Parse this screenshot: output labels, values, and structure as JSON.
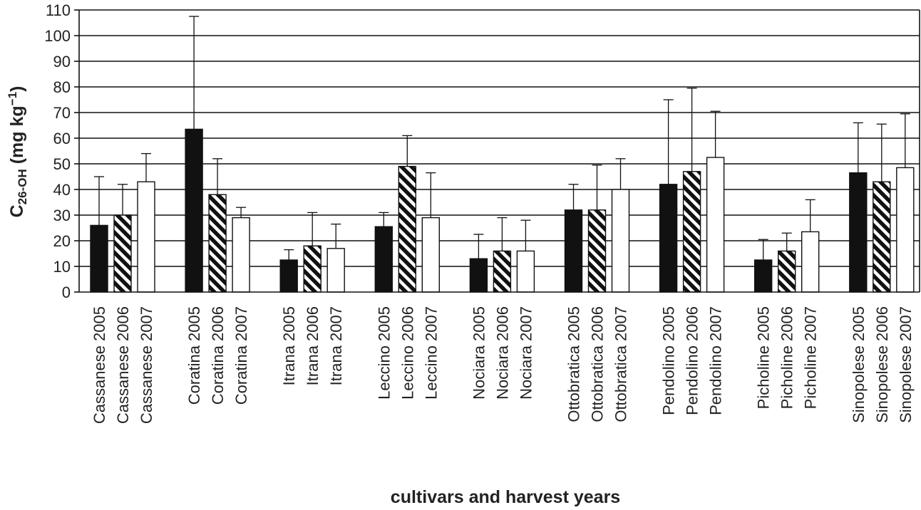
{
  "chart_data": {
    "type": "bar",
    "ylabel_main": "C",
    "ylabel_sub": "26-OH",
    "ylabel_unit_pre": " (mg kg",
    "ylabel_unit_sup": "−1",
    "ylabel_unit_post": ")",
    "xlabel": "cultivars and harvest years",
    "ylim": [
      0,
      110
    ],
    "yticks": [
      "0",
      "10",
      "20",
      "30",
      "40",
      "50",
      "60",
      "70",
      "80",
      "90",
      "100",
      "110"
    ],
    "grid": true,
    "groups": [
      {
        "cultivar": "Cassanese",
        "bars": [
          {
            "label": "Cassanese 2005",
            "year": "2005",
            "value": 26,
            "error": 19
          },
          {
            "label": "Cassanese 2006",
            "year": "2006",
            "value": 30,
            "error": 12
          },
          {
            "label": "Cassanese 2007",
            "year": "2007",
            "value": 43,
            "error": 11
          }
        ]
      },
      {
        "cultivar": "Coratina",
        "bars": [
          {
            "label": "Coratina 2005",
            "year": "2005",
            "value": 63.5,
            "error": 44
          },
          {
            "label": "Coratina 2006",
            "year": "2006",
            "value": 38,
            "error": 14
          },
          {
            "label": "Coratina 2007",
            "year": "2007",
            "value": 29,
            "error": 4
          }
        ]
      },
      {
        "cultivar": "Itrana",
        "bars": [
          {
            "label": "Itrana 2005",
            "year": "2005",
            "value": 12.5,
            "error": 4
          },
          {
            "label": "Itrana 2006",
            "year": "2006",
            "value": 18,
            "error": 13
          },
          {
            "label": "Itrana 2007",
            "year": "2007",
            "value": 17,
            "error": 9.5
          }
        ]
      },
      {
        "cultivar": "Leccino",
        "bars": [
          {
            "label": "Leccino 2005",
            "year": "2005",
            "value": 25.5,
            "error": 5.5
          },
          {
            "label": "Leccino 2006",
            "year": "2006",
            "value": 49,
            "error": 12
          },
          {
            "label": "Leccino 2007",
            "year": "2007",
            "value": 29,
            "error": 17.5
          }
        ]
      },
      {
        "cultivar": "Nociara",
        "bars": [
          {
            "label": "Nociara 2005",
            "year": "2005",
            "value": 13,
            "error": 9.5
          },
          {
            "label": "Nociara 2006",
            "year": "2006",
            "value": 16,
            "error": 13
          },
          {
            "label": "Nociara 2007",
            "year": "2007",
            "value": 16,
            "error": 12
          }
        ]
      },
      {
        "cultivar": "Ottobratica",
        "bars": [
          {
            "label": "Ottobratica 2005",
            "year": "2005",
            "value": 32,
            "error": 10
          },
          {
            "label": "Ottobratica 2006",
            "year": "2006",
            "value": 32,
            "error": 17.5
          },
          {
            "label": "Ottobratica 2007",
            "year": "2007",
            "value": 40,
            "error": 12
          }
        ]
      },
      {
        "cultivar": "Pendolino",
        "bars": [
          {
            "label": "Pendolino 2005",
            "year": "2005",
            "value": 42,
            "error": 33
          },
          {
            "label": "Pendolino 2006",
            "year": "2006",
            "value": 47,
            "error": 32.5
          },
          {
            "label": "Pendolino 2007",
            "year": "2007",
            "value": 52.5,
            "error": 18
          }
        ]
      },
      {
        "cultivar": "Picholine",
        "bars": [
          {
            "label": "Picholine 2005",
            "year": "2005",
            "value": 12.5,
            "error": 8
          },
          {
            "label": "Picholine 2006",
            "year": "2006",
            "value": 16,
            "error": 7
          },
          {
            "label": "Picholine 2007",
            "year": "2007",
            "value": 23.5,
            "error": 12.5
          }
        ]
      },
      {
        "cultivar": "Sinopolese",
        "bars": [
          {
            "label": "Sinopolese 2005",
            "year": "2005",
            "value": 46.5,
            "error": 19.5
          },
          {
            "label": "Sinopolese 2006",
            "year": "2006",
            "value": 43,
            "error": 22.5
          },
          {
            "label": "Sinopolese 2007",
            "year": "2007",
            "value": 48.5,
            "error": 21
          }
        ]
      }
    ],
    "colors": {
      "2005": "#111111",
      "2006": "hatched-diagonal",
      "2007": "#ffffff",
      "line": "#111111"
    }
  }
}
